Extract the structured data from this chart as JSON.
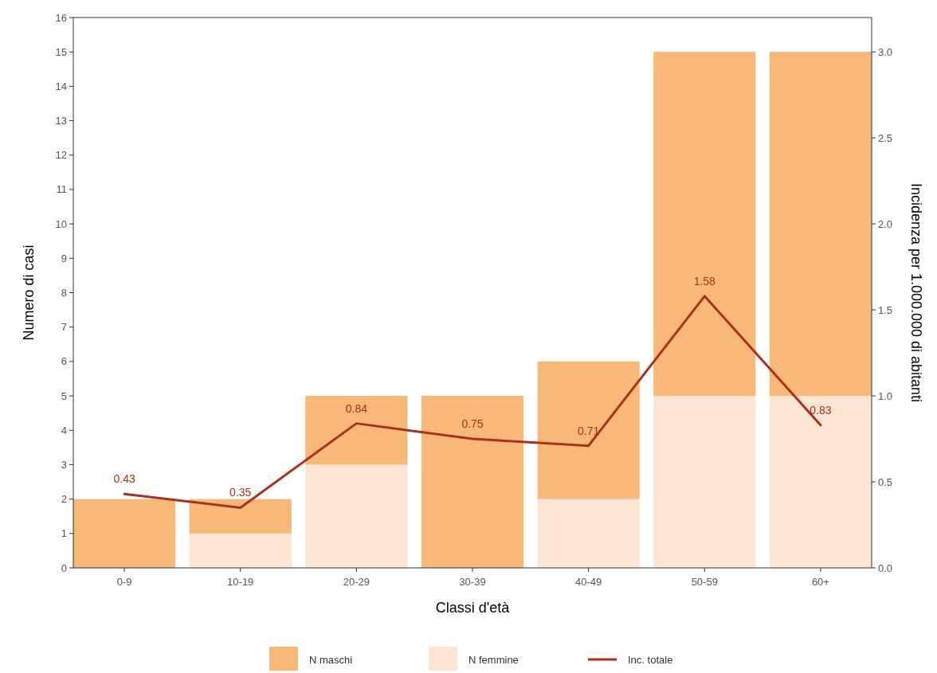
{
  "chart_data": {
    "type": "bar",
    "stacked": true,
    "xlabel": "Classi d'età",
    "ylabel": "Numero di casi",
    "y2label": "Incidenza per 1.000.000 di abitanti",
    "categories": [
      "0-9",
      "10-19",
      "20-29",
      "30-39",
      "40-49",
      "50-59",
      "60+"
    ],
    "series": [
      {
        "name": "N femmine",
        "color": "#fde5d3",
        "values": [
          0,
          1,
          3,
          0,
          2,
          5,
          5
        ]
      },
      {
        "name": "N maschi",
        "color": "#f8b878",
        "values": [
          2,
          1,
          2,
          5,
          4,
          10,
          10
        ]
      },
      {
        "name": "Inc. totale",
        "type": "line",
        "axis": "y2",
        "color": "#a8321c",
        "values": [
          0.43,
          0.35,
          0.84,
          0.75,
          0.71,
          1.58,
          0.83
        ],
        "value_labels": [
          "0.43",
          "0.35",
          "0.84",
          "0.75",
          "0.71",
          "1.58",
          "0.83"
        ]
      }
    ],
    "ylim": [
      0,
      16
    ],
    "yticks": [
      0,
      1,
      2,
      3,
      4,
      5,
      6,
      7,
      8,
      9,
      10,
      11,
      12,
      13,
      14,
      15,
      16
    ],
    "y2lim": [
      0,
      3.2
    ],
    "y2ticks": [
      {
        "value": 0,
        "label": "0.0"
      },
      {
        "value": 0.5,
        "label": "0.5"
      },
      {
        "value": 1,
        "label": "1.0"
      },
      {
        "value": 1.5,
        "label": "1.5"
      },
      {
        "value": 2,
        "label": "2.0"
      },
      {
        "value": 2.5,
        "label": "2.5"
      },
      {
        "value": 3,
        "label": "3.0"
      }
    ],
    "grid": false,
    "legend": "bottom"
  }
}
